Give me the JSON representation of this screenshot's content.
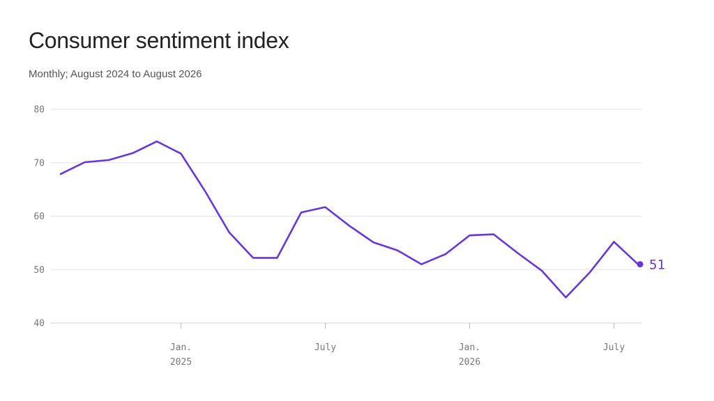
{
  "title": "Consumer sentiment index",
  "subtitle": "Monthly; August 2024 to August 2026",
  "colors": {
    "line": "#6633ee",
    "grid": "#e3e3e3",
    "axis": "#999999",
    "text": "#777777"
  },
  "chart_data": {
    "type": "line",
    "title": "Consumer sentiment index",
    "subtitle": "Monthly; August 2024 to August 2026",
    "xlabel": "",
    "ylabel": "",
    "ylim": [
      40,
      80
    ],
    "yticks": [
      40,
      50,
      60,
      70,
      80
    ],
    "grid": true,
    "x": [
      "2024-08",
      "2024-09",
      "2024-10",
      "2024-11",
      "2024-12",
      "2025-01",
      "2025-02",
      "2025-03",
      "2025-04",
      "2025-05",
      "2025-06",
      "2025-07",
      "2025-08",
      "2025-09",
      "2025-10",
      "2025-11",
      "2025-12",
      "2026-01",
      "2026-02",
      "2026-03",
      "2026-04",
      "2026-05",
      "2026-06",
      "2026-07",
      "2026-08"
    ],
    "series": [
      {
        "values": [
          67.9,
          70.1,
          70.5,
          71.8,
          74.0,
          71.7,
          64.7,
          57.0,
          52.2,
          52.2,
          60.7,
          61.7,
          58.2,
          55.1,
          53.6,
          51.0,
          52.9,
          56.4,
          56.6,
          53.1,
          49.8,
          44.8,
          49.5,
          55.2,
          51.0
        ],
        "end_label": "51"
      }
    ],
    "xticks": [
      {
        "x": "2025-01",
        "label": "Jan.",
        "sublabel": "2025"
      },
      {
        "x": "2025-07",
        "label": "July",
        "sublabel": ""
      },
      {
        "x": "2026-01",
        "label": "Jan.",
        "sublabel": "2026"
      },
      {
        "x": "2026-07",
        "label": "July",
        "sublabel": ""
      }
    ]
  }
}
